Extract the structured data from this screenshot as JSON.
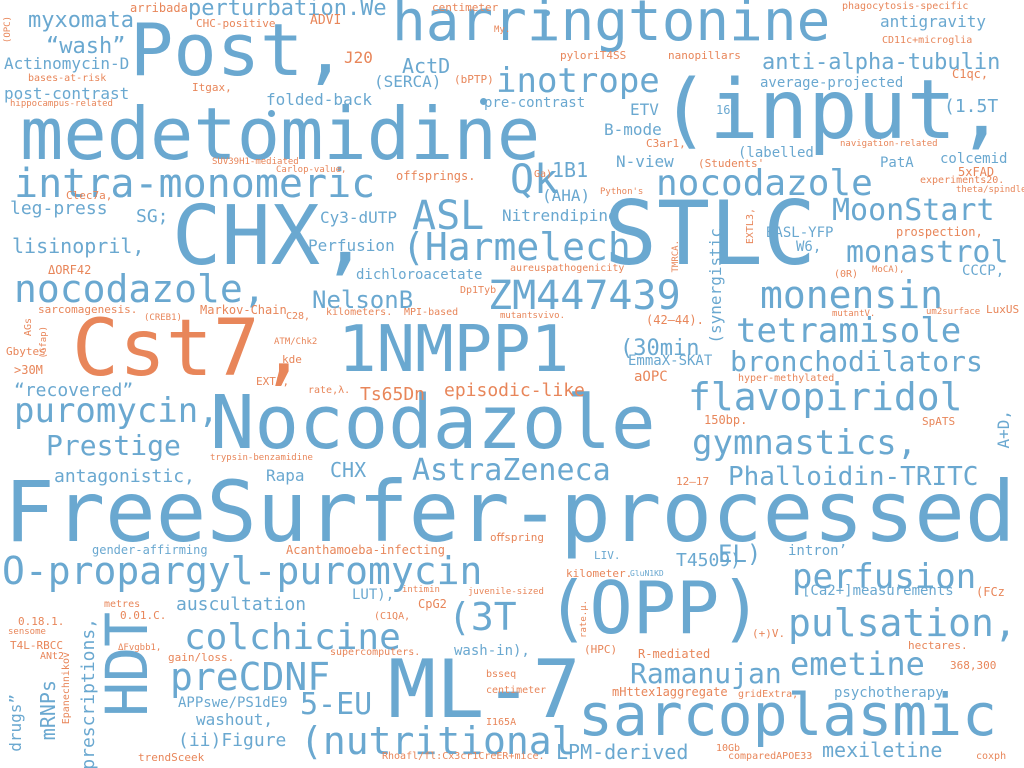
{
  "colors": {
    "blue": "#6aa8d0",
    "orange": "#e8865a"
  },
  "words": {
    "harringtonine": "harringtonine",
    "post": "Post,",
    "medetomidine": "medetomidine",
    "input": "(input,",
    "chx_big": "CHX,",
    "stlc": "STLC",
    "cst7": "Cst7,",
    "nmpp1": "1NMPP1",
    "nocodazole_big": "Nocodazole",
    "freesurfer": "FreeSurfer-processed",
    "opp": "(OPP)",
    "ml7": "ML-7",
    "hdt": "HDT",
    "sarcoplasmic": "sarcoplasmic",
    "o_propargyl": "O-propargyl-puromycin",
    "zm447439": "ZM447439",
    "intra_monomeric": "intra-monomeric",
    "nocodazole2": "nocodazole",
    "nocodazole3": "nocodazole,",
    "qk": "Qk",
    "asl": "ASL",
    "harmelech": "(Harmelech",
    "moonstart": "MoonStart",
    "monastrol": "monastrol",
    "monensin": "monensin",
    "tetramisole": "tetramisole",
    "bronchodilators": "bronchodilators",
    "flavopiridol": "flavopiridol",
    "gymnastics": "gymnastics,",
    "puromycin": "puromycin,",
    "prestige": "Prestige",
    "astrazeneca": "AstraZeneca",
    "phalloidin": "Phalloidin-TRITC",
    "colchicine": "colchicine",
    "pulsation": "pulsation,",
    "emetine": "emetine",
    "perfusion": "perfusion",
    "precdnf": "preCDNF",
    "five_eu": "5-EU",
    "nutritional": "(nutritional",
    "ramanujan": "Ramanujan",
    "three_t": "(3T",
    "inotrope": "inotrope",
    "anti_alpha": "anti-alpha-tubulin",
    "perturbation": "perturbation.We",
    "myxomata": "myxomata",
    "wash": "“wash”",
    "actinomycin": "Actinomycin-D",
    "post_contrast": "post-contrast",
    "j20": "J20",
    "actd": "ActD",
    "serca": "(SERCA)",
    "folded_back": "folded-back",
    "leg_press": "leg-press",
    "lisinopril": "lisinopril,",
    "sg": "SG;",
    "cy3": "Cy3-dUTP",
    "nitrendipine": "Nitrendipine",
    "nelsonb": "NelsonB",
    "perfusion_caps": "Perfusion",
    "onebone": "1B1",
    "aha": "(AHA)",
    "thirty_min": "(30min",
    "emmax": "EmmaX-SKAT",
    "aopc": "aOPC",
    "episodic": "episodic-like",
    "ts65dn": "Ts65Dn",
    "recovered": "“recovered”",
    "antagonistic": "antagonistic,",
    "chx_small": "CHX",
    "rapa": "Rapa",
    "el": "EL)",
    "t4509": "T4509)",
    "auscultation": "auscultation",
    "washout": "washout,",
    "ii_figure": "(ii)Figure",
    "lpm": "LPM-derived",
    "mexiletine": "mexiletine",
    "psychotherapy": "psychotherapy",
    "ca2": "[Ca2+]measurements",
    "antigravity": "antigravity",
    "average_projected": "average-projected",
    "one_five_t": "(1.5T",
    "labelled": "(labelled",
    "colcemid": "colcemid",
    "pata": "PatA",
    "basl_yfp": "BASL-YFP",
    "w6": "W6,",
    "cccp": "CCCP,",
    "synergistic": "(synergistic",
    "etv": "ETV",
    "bmode": "B-mode",
    "nview": "N-view",
    "sixteenh": "16H",
    "pre_contrast": "pre-contrast",
    "five_xfad": "5xFAD",
    "dichloroacetate": "dichloroacetate",
    "gender": "gender-affirming",
    "acanthamoeba": "Acanthamoeba-infecting",
    "lut": "LUT),",
    "cpg2": "CpG2",
    "appswe": "APPswe/PS1dE9",
    "wash_in": "wash-in),",
    "r_mediated": "R-mediated",
    "mrnps": "mRNPs",
    "prescriptions": "prescriptions,",
    "drugs": "drugs”",
    "a_d": "A+D,",
    "intron": "intron’",
    "arribada": "arribada",
    "chc_positive": "CHC-positive",
    "advi": "ADVI",
    "centimeter": "centimeter",
    "my": "My.",
    "phagocytosis": "phagocytosis-specific",
    "cd11c": "CD11c+microglia",
    "opc_small": "(OPC)",
    "bases_at_risk": "bases-at-risk",
    "hippocampus": "hippocampus-related",
    "itgax": "Itgax,",
    "bptp": "(bPTP)",
    "pylori": "pyloriT4SS",
    "nanopillars": "nanopillars",
    "c1qc": "C1qc,",
    "suv39h1": "SUV39H1-mediated",
    "carlop": "Carlop-value,",
    "clec7a": "Clec7a,",
    "offsprings": "offsprings.",
    "ga": "Ga)",
    "c3ar1": "C3ar1,",
    "students": "(Students'",
    "navigation": "navigation-related",
    "experiments": "experiments20.",
    "theta": "theta/spindle",
    "pythons": "Python's",
    "extl3": "EXTL3,",
    "prospection": "prospection,",
    "orf42": "ΔORF42",
    "aureus": "aureuspathogenicity",
    "tmrca": "TMRCA.",
    "zero_r": "(0R)",
    "moca": "MoCA),",
    "sarcomagenesis": "sarcomagenesis.",
    "creb": "(CREB1)",
    "markov": "Markov-Chain",
    "dp1tyb": "Dp1Tyb",
    "c28": "C28,",
    "kilometers": "kilometers.",
    "mpi": "MPI-based",
    "mutantsvivo": "mutantsvivo.",
    "mutantv": "mutantV.",
    "um2": "um2surface",
    "luxus": "LuxUS",
    "ags": "AGs",
    "gfap": "(Gfap)",
    "gbytes": "Gbytes",
    "thirty_m": ">30M",
    "atm": "ATM/Chk2",
    "kde": "kde",
    "ext1": "EXT1,",
    "rate": "rate,λ.",
    "forty_two": "(42–44).",
    "hyper": "hyper-methylated",
    "spats": "SpATS",
    "onefifty": "150bp.",
    "twelve": "12–17",
    "trypsin": "trypsin-benzamidine",
    "offspring": "oﬀspring",
    "liv": "LIV.",
    "glun1": "GluN1KD",
    "kilometer": "kilometer.",
    "intimin": "intimin",
    "juvenile": "juvenile-sized",
    "c1qa": "(C1QA,",
    "fcz": "(FCz",
    "metres": "metres",
    "point_ohs": "0.01.C.",
    "sensome": "sensome",
    "t4l": "T4L-RBCC",
    "ant2": "ANt2",
    "version": "0.18.1.",
    "fvgbb": "ΔFvgbb1,",
    "gain_loss": "gain/loss.",
    "supercomputers": "supercomputers.",
    "hpc": "(HPC)",
    "rate_mu": "rate.μ.",
    "v_plus": "(+)V.",
    "hectares": "hectares.",
    "three68": "368,300",
    "epanechnikov": "Epanechnikov",
    "bsseq": "bsseq",
    "centimeter2": "centimeter",
    "mhttex": "mHttex1aggregate",
    "gridextra": "gridExtra,",
    "i165a": "I165A",
    "tenGb": "10Gb",
    "trendsceek": "trendSceek",
    "rhoaf": "Rhoafl/fl:Cx3cr1CreER+mice.",
    "compared": "comparedAPOE33",
    "coxph": "coxph"
  }
}
